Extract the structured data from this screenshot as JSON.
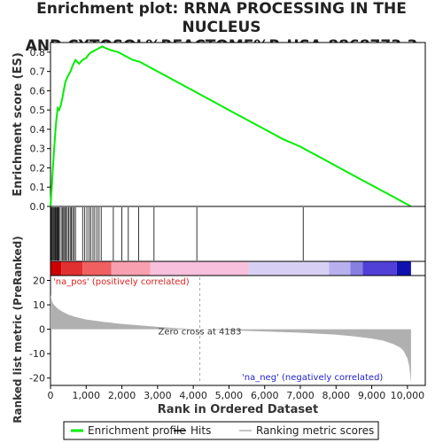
{
  "title_lines": [
    "Enrichment plot: RRNA PROCESSING IN THE NUCLEUS",
    "AND CYTOSOL%REACTOME%R-HSA-8868773.3"
  ],
  "colors": {
    "es_line": "#00ee00",
    "hits": "#000000",
    "metric_fill": "#b0b0b0",
    "pos_label": "#dd2222",
    "neg_label": "#2222cc",
    "zero_cross_line": "#aaaaaa"
  },
  "chart_data": [
    {
      "type": "line",
      "name": "enrichment-score-panel",
      "ylabel": "Enrichment score (ES)",
      "ylim": [
        0.0,
        0.85
      ],
      "yticks": [
        0.0,
        0.1,
        0.2,
        0.3,
        0.4,
        0.5,
        0.6,
        0.7,
        0.8
      ],
      "ytick_labels": [
        "0.0",
        "0.1",
        "0.2",
        "0.3",
        "0.4",
        "0.5",
        "0.6",
        "0.7",
        "0.8"
      ],
      "xlim": [
        0,
        10500
      ],
      "series": [
        {
          "name": "Enrichment profile",
          "x": [
            0,
            30,
            60,
            100,
            130,
            160,
            200,
            240,
            280,
            330,
            370,
            410,
            450,
            500,
            560,
            620,
            700,
            800,
            900,
            1000,
            1080,
            1150,
            1250,
            1350,
            1450,
            1550,
            1700,
            1900,
            2100,
            2300,
            2500,
            2700,
            3000,
            3500,
            4000,
            4500,
            5000,
            5500,
            6000,
            6500,
            7000,
            7100,
            7500,
            8000,
            8500,
            9000,
            9500,
            10000,
            10100
          ],
          "y": [
            0.0,
            0.08,
            0.18,
            0.29,
            0.37,
            0.44,
            0.51,
            0.5,
            0.52,
            0.56,
            0.6,
            0.64,
            0.66,
            0.68,
            0.7,
            0.73,
            0.76,
            0.74,
            0.76,
            0.77,
            0.79,
            0.8,
            0.81,
            0.82,
            0.83,
            0.82,
            0.81,
            0.8,
            0.78,
            0.76,
            0.75,
            0.73,
            0.7,
            0.65,
            0.6,
            0.55,
            0.5,
            0.45,
            0.4,
            0.35,
            0.31,
            0.3,
            0.26,
            0.21,
            0.16,
            0.11,
            0.06,
            0.01,
            0.0
          ]
        }
      ]
    },
    {
      "type": "scatter",
      "name": "hits-panel",
      "xlim": [
        0,
        10500
      ],
      "series": [
        {
          "name": "Hits",
          "x": [
            20,
            45,
            70,
            95,
            120,
            140,
            165,
            185,
            205,
            225,
            250,
            300,
            340,
            370,
            400,
            430,
            470,
            510,
            550,
            580,
            620,
            660,
            700,
            900,
            960,
            1020,
            1080,
            1130,
            1190,
            1240,
            1300,
            1360,
            1420,
            1760,
            2000,
            2180,
            2470,
            2900,
            4100,
            7080
          ]
        }
      ]
    },
    {
      "type": "area",
      "name": "ranked-metric-panel",
      "ylabel": "Ranked list metric (PreRanked)",
      "xlabel": "Rank in Ordered Dataset",
      "ylim": [
        -23,
        22
      ],
      "yticks": [
        -20,
        -10,
        0,
        10,
        20
      ],
      "ytick_labels": [
        "-20",
        "-10",
        "0",
        "10",
        "20"
      ],
      "xlim": [
        0,
        10500
      ],
      "xticks": [
        0,
        1000,
        2000,
        3000,
        4000,
        5000,
        6000,
        7000,
        8000,
        9000,
        10000
      ],
      "xtick_labels": [
        "0",
        "1,000",
        "2,000",
        "3,000",
        "4,000",
        "5,000",
        "6,000",
        "7,000",
        "8,000",
        "9,000",
        "10,000"
      ],
      "series": [
        {
          "name": "Ranking metric scores",
          "x": [
            0,
            50,
            100,
            200,
            300,
            500,
            700,
            1000,
            1500,
            2000,
            2500,
            3000,
            3500,
            4000,
            4183,
            5000,
            6000,
            7000,
            8000,
            8500,
            9000,
            9300,
            9600,
            9800,
            9900,
            10000,
            10050,
            10100
          ],
          "y": [
            14,
            11,
            10,
            8.5,
            7.5,
            6,
            5,
            4,
            3,
            2.2,
            1.6,
            1.0,
            0.5,
            0.15,
            0,
            -0.4,
            -0.9,
            -1.4,
            -2.2,
            -2.9,
            -3.8,
            -4.6,
            -6,
            -7.5,
            -9,
            -12,
            -15,
            -22
          ]
        }
      ],
      "annotations": {
        "zero_cross_text": "Zero cross at 4183",
        "zero_cross_x": 4183,
        "pos_label": "'na_pos' (positively correlated)",
        "neg_label": "'na_neg' (negatively correlated)"
      },
      "heatmap_bands": [
        {
          "x0": 0,
          "x1": 300,
          "color": "#cc0000"
        },
        {
          "x0": 300,
          "x1": 900,
          "color": "#e03030"
        },
        {
          "x0": 900,
          "x1": 1700,
          "color": "#f06060"
        },
        {
          "x0": 1700,
          "x1": 2800,
          "color": "#f8a0b0"
        },
        {
          "x0": 2800,
          "x1": 5550,
          "color": "#f8c0dc"
        },
        {
          "x0": 5550,
          "x1": 7800,
          "color": "#d8d0f4"
        },
        {
          "x0": 7800,
          "x1": 8400,
          "color": "#b8b0ee"
        },
        {
          "x0": 8400,
          "x1": 8750,
          "color": "#8880e0"
        },
        {
          "x0": 8750,
          "x1": 9700,
          "color": "#5040d8"
        },
        {
          "x0": 9700,
          "x1": 10100,
          "color": "#1010b0"
        }
      ]
    }
  ],
  "legend": {
    "items": [
      {
        "label": "Enrichment profile",
        "color": "#00ee00"
      },
      {
        "label": "Hits",
        "color": "#000000"
      },
      {
        "label": "Ranking metric scores",
        "color": "#b0b0b0"
      }
    ]
  }
}
